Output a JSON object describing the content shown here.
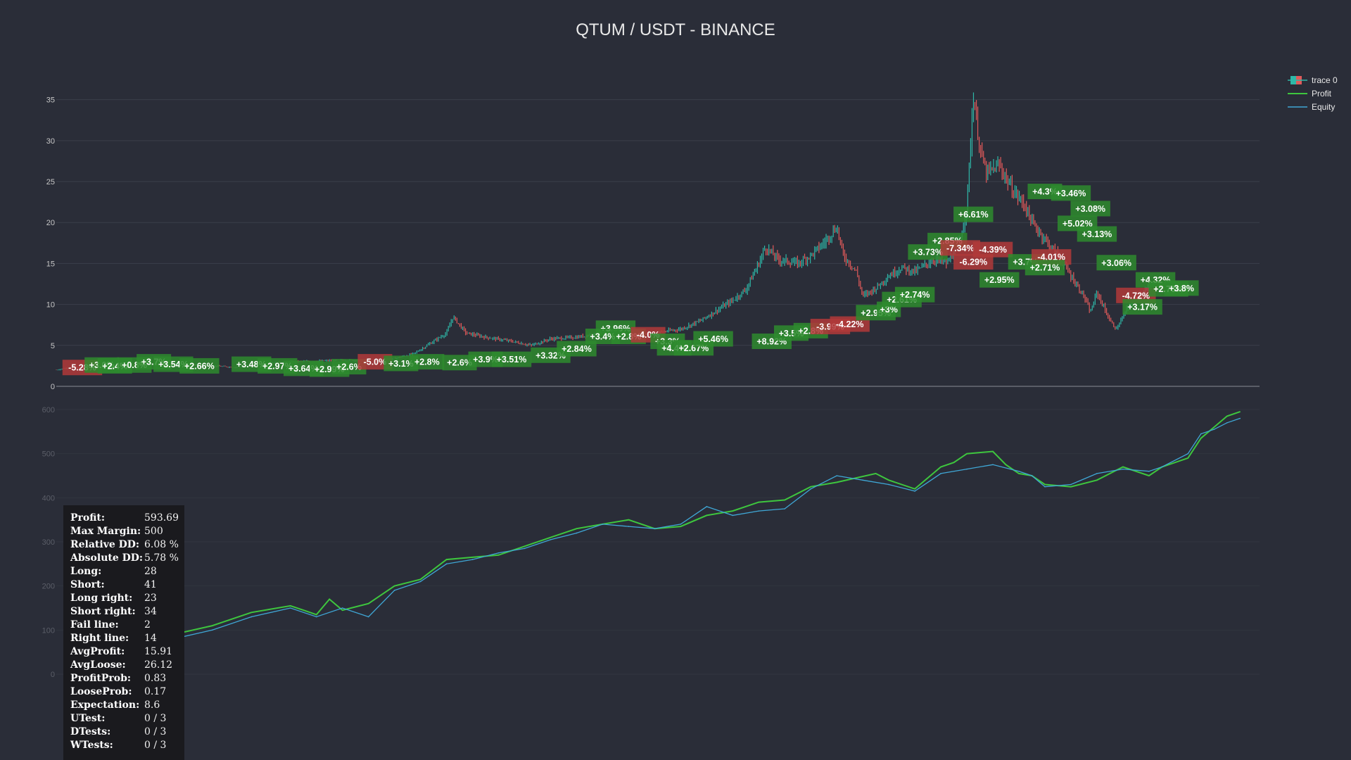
{
  "colors": {
    "background": "#2a2d38",
    "grid": "#3a3e4a",
    "candle_up": "#2eb8a8",
    "candle_down": "#e05a5a",
    "profit": "#3ec63e",
    "equity": "#3fa7d6",
    "win_box": "#2e8b2e",
    "loss_box": "#b23a3a"
  },
  "chart_data": [
    {
      "type": "candlestick",
      "title": "QTUM / USDT - BINANCE",
      "y_ticks": [
        "0",
        "5",
        "10",
        "15",
        "20",
        "25",
        "30",
        "35"
      ],
      "ylim": [
        0,
        36
      ],
      "legend": [
        "trace 0",
        "Profit",
        "Equity"
      ],
      "legend_position": "top-right",
      "price_path": [
        [
          0,
          2.0
        ],
        [
          2,
          2.3
        ],
        [
          5,
          2.3
        ],
        [
          8,
          2.5
        ],
        [
          12,
          2.6
        ],
        [
          16,
          2.6
        ],
        [
          20,
          2.7
        ],
        [
          24,
          2.5
        ],
        [
          28,
          2.3
        ],
        [
          32,
          2.8
        ],
        [
          36,
          3.0
        ],
        [
          40,
          3.1
        ],
        [
          44,
          3.2
        ],
        [
          48,
          3.2
        ],
        [
          52,
          3.4
        ],
        [
          55,
          4.0
        ],
        [
          58,
          5.5
        ],
        [
          60,
          6.5
        ],
        [
          61,
          8.5
        ],
        [
          63,
          6.5
        ],
        [
          66,
          6.0
        ],
        [
          70,
          5.5
        ],
        [
          73,
          5.0
        ],
        [
          76,
          5.8
        ],
        [
          80,
          6.0
        ],
        [
          84,
          6.5
        ],
        [
          88,
          6.2
        ],
        [
          92,
          6.5
        ],
        [
          96,
          7.0
        ],
        [
          99,
          8.0
        ],
        [
          102,
          9.5
        ],
        [
          104,
          10.5
        ],
        [
          106,
          11.8
        ],
        [
          108,
          15.0
        ],
        [
          109,
          17.0
        ],
        [
          111,
          15.5
        ],
        [
          114,
          15.0
        ],
        [
          116,
          16.0
        ],
        [
          118,
          17.5
        ],
        [
          120,
          19.5
        ],
        [
          121,
          16.0
        ],
        [
          123,
          14.0
        ],
        [
          124,
          11.0
        ],
        [
          126,
          12.0
        ],
        [
          128,
          13.5
        ],
        [
          130,
          14.5
        ],
        [
          132,
          14.0
        ],
        [
          135,
          15.5
        ],
        [
          137,
          15.0
        ],
        [
          139,
          18.0
        ],
        [
          140,
          22.0
        ],
        [
          141,
          35.5
        ],
        [
          142,
          29.0
        ],
        [
          143,
          26.0
        ],
        [
          145,
          27.0
        ],
        [
          147,
          24.0
        ],
        [
          149,
          22.0
        ],
        [
          150,
          20.0
        ],
        [
          152,
          18.0
        ],
        [
          154,
          16.0
        ],
        [
          156,
          13.5
        ],
        [
          158,
          11.0
        ],
        [
          159,
          9.0
        ],
        [
          160,
          11.5
        ],
        [
          162,
          8.0
        ],
        [
          163,
          7.0
        ],
        [
          165,
          10.0
        ],
        [
          167,
          11.5
        ],
        [
          169,
          12.5
        ],
        [
          171,
          12.0
        ],
        [
          173,
          12.3
        ]
      ],
      "trade_labels": [
        {
          "t": 4,
          "p": 2.3,
          "label": "-5.28%",
          "win": false
        },
        {
          "t": 7,
          "p": 2.6,
          "label": "+3.0%",
          "win": true
        },
        {
          "t": 9,
          "p": 2.5,
          "label": "+2.4%",
          "win": true
        },
        {
          "t": 12,
          "p": 2.6,
          "label": "+0.8%",
          "win": true
        },
        {
          "t": 15,
          "p": 3.0,
          "label": "+3.7%",
          "win": true
        },
        {
          "t": 18,
          "p": 2.7,
          "label": "+3.54%",
          "win": true
        },
        {
          "t": 22,
          "p": 2.5,
          "label": "+2.66%",
          "win": true
        },
        {
          "t": 30,
          "p": 2.7,
          "label": "+3.48%",
          "win": true
        },
        {
          "t": 34,
          "p": 2.5,
          "label": "+2.97%",
          "win": true
        },
        {
          "t": 38,
          "p": 2.2,
          "label": "+3.64%",
          "win": true
        },
        {
          "t": 42,
          "p": 2.1,
          "label": "+2.99%",
          "win": true
        },
        {
          "t": 45,
          "p": 2.4,
          "label": "+2.6%",
          "win": true
        },
        {
          "t": 49,
          "p": 3.0,
          "label": "-5.0%",
          "win": false
        },
        {
          "t": 53,
          "p": 2.8,
          "label": "+3.1%",
          "win": true
        },
        {
          "t": 57,
          "p": 3.0,
          "label": "+2.8%",
          "win": true
        },
        {
          "t": 62,
          "p": 2.9,
          "label": "+2.6%",
          "win": true
        },
        {
          "t": 66,
          "p": 3.3,
          "label": "+3.9%",
          "win": true
        },
        {
          "t": 70,
          "p": 3.3,
          "label": "+3.51%",
          "win": true
        },
        {
          "t": 76,
          "p": 3.8,
          "label": "+3.32%",
          "win": true
        },
        {
          "t": 80,
          "p": 4.6,
          "label": "+2.84%",
          "win": true
        },
        {
          "t": 86,
          "p": 7.1,
          "label": "+3.96%",
          "win": true
        },
        {
          "t": 84,
          "p": 6.1,
          "label": "+3.4%",
          "win": true
        },
        {
          "t": 88,
          "p": 6.1,
          "label": "+2.8%",
          "win": true
        },
        {
          "t": 91,
          "p": 6.3,
          "label": "-4.0%",
          "win": false
        },
        {
          "t": 94,
          "p": 5.5,
          "label": "+3.3%",
          "win": true
        },
        {
          "t": 95,
          "p": 4.7,
          "label": "+4.4%",
          "win": true
        },
        {
          "t": 98,
          "p": 4.7,
          "label": "+2.67%",
          "win": true
        },
        {
          "t": 101,
          "p": 5.8,
          "label": "+5.46%",
          "win": true
        },
        {
          "t": 110,
          "p": 5.5,
          "label": "+8.92%",
          "win": true
        },
        {
          "t": 113,
          "p": 6.5,
          "label": "+3.5%",
          "win": true
        },
        {
          "t": 116,
          "p": 6.8,
          "label": "+2.8%",
          "win": true
        },
        {
          "t": 119,
          "p": 7.3,
          "label": "-3.99%",
          "win": false
        },
        {
          "t": 122,
          "p": 7.6,
          "label": "-4.22%",
          "win": false
        },
        {
          "t": 126,
          "p": 9.0,
          "label": "+2.95%",
          "win": true
        },
        {
          "t": 128,
          "p": 9.4,
          "label": "+3%",
          "win": true
        },
        {
          "t": 130,
          "p": 10.6,
          "label": "+2.61%",
          "win": true
        },
        {
          "t": 132,
          "p": 11.2,
          "label": "+2.74%",
          "win": true
        },
        {
          "t": 134,
          "p": 16.4,
          "label": "+3.73%",
          "win": true
        },
        {
          "t": 137,
          "p": 17.8,
          "label": "+2.85%",
          "win": true
        },
        {
          "t": 139,
          "p": 16.9,
          "label": "-7.34%",
          "win": false
        },
        {
          "t": 141,
          "p": 15.2,
          "label": "-6.29%",
          "win": false
        },
        {
          "t": 141,
          "p": 21.0,
          "label": "+6.61%",
          "win": true
        },
        {
          "t": 144,
          "p": 16.7,
          "label": "-4.39%",
          "win": false
        },
        {
          "t": 145,
          "p": 13.0,
          "label": "+2.95%",
          "win": true
        },
        {
          "t": 149,
          "p": 15.2,
          "label": "+3.7%",
          "win": true
        },
        {
          "t": 153,
          "p": 15.8,
          "label": "-4.01%",
          "win": false
        },
        {
          "t": 152,
          "p": 14.5,
          "label": "+2.71%",
          "win": true
        },
        {
          "t": 152,
          "p": 23.8,
          "label": "+4.3%",
          "win": true
        },
        {
          "t": 156,
          "p": 23.6,
          "label": "+3.46%",
          "win": true
        },
        {
          "t": 159,
          "p": 21.7,
          "label": "+3.08%",
          "win": true
        },
        {
          "t": 157,
          "p": 19.9,
          "label": "+5.02%",
          "win": true
        },
        {
          "t": 160,
          "p": 18.6,
          "label": "+3.13%",
          "win": true
        },
        {
          "t": 163,
          "p": 15.1,
          "label": "+3.06%",
          "win": true
        },
        {
          "t": 166,
          "p": 11.1,
          "label": "-4.72%",
          "win": false
        },
        {
          "t": 167,
          "p": 9.7,
          "label": "+3.17%",
          "win": true
        },
        {
          "t": 169,
          "p": 13.0,
          "label": "+4.32%",
          "win": true
        },
        {
          "t": 171,
          "p": 11.9,
          "label": "+2.73%",
          "win": true
        },
        {
          "t": 173,
          "p": 12.0,
          "label": "+3.8%",
          "win": true
        }
      ]
    },
    {
      "type": "line",
      "y_ticks": [
        "0",
        "100",
        "200",
        "300",
        "400",
        "500",
        "600"
      ],
      "ylim": [
        0,
        600
      ],
      "series": [
        {
          "name": "Profit",
          "points": [
            [
              3,
              0
            ],
            [
              6,
              40
            ],
            [
              9,
              60
            ],
            [
              12,
              80
            ],
            [
              18,
              90
            ],
            [
              24,
              110
            ],
            [
              30,
              140
            ],
            [
              36,
              155
            ],
            [
              38,
              145
            ],
            [
              40,
              135
            ],
            [
              42,
              170
            ],
            [
              44,
              145
            ],
            [
              48,
              160
            ],
            [
              52,
              200
            ],
            [
              56,
              215
            ],
            [
              60,
              260
            ],
            [
              64,
              265
            ],
            [
              68,
              270
            ],
            [
              72,
              290
            ],
            [
              76,
              310
            ],
            [
              80,
              330
            ],
            [
              84,
              340
            ],
            [
              88,
              350
            ],
            [
              92,
              330
            ],
            [
              96,
              335
            ],
            [
              100,
              360
            ],
            [
              104,
              370
            ],
            [
              108,
              390
            ],
            [
              112,
              395
            ],
            [
              116,
              425
            ],
            [
              120,
              435
            ],
            [
              123,
              445
            ],
            [
              126,
              455
            ],
            [
              128,
              440
            ],
            [
              132,
              420
            ],
            [
              136,
              470
            ],
            [
              138,
              480
            ],
            [
              140,
              500
            ],
            [
              144,
              505
            ],
            [
              146,
              475
            ],
            [
              148,
              455
            ],
            [
              150,
              450
            ],
            [
              152,
              430
            ],
            [
              156,
              425
            ],
            [
              160,
              440
            ],
            [
              164,
              470
            ],
            [
              168,
              450
            ],
            [
              170,
              470
            ],
            [
              174,
              490
            ],
            [
              176,
              535
            ],
            [
              178,
              560
            ],
            [
              180,
              585
            ],
            [
              182,
              595
            ]
          ]
        },
        {
          "name": "Equity",
          "points": [
            [
              3,
              -5
            ],
            [
              6,
              25
            ],
            [
              9,
              60
            ],
            [
              12,
              70
            ],
            [
              18,
              80
            ],
            [
              24,
              100
            ],
            [
              30,
              130
            ],
            [
              36,
              150
            ],
            [
              40,
              130
            ],
            [
              44,
              150
            ],
            [
              48,
              130
            ],
            [
              52,
              190
            ],
            [
              56,
              210
            ],
            [
              60,
              250
            ],
            [
              64,
              260
            ],
            [
              68,
              275
            ],
            [
              72,
              285
            ],
            [
              76,
              305
            ],
            [
              80,
              320
            ],
            [
              84,
              340
            ],
            [
              88,
              335
            ],
            [
              92,
              330
            ],
            [
              96,
              340
            ],
            [
              100,
              380
            ],
            [
              104,
              360
            ],
            [
              108,
              370
            ],
            [
              112,
              375
            ],
            [
              116,
              420
            ],
            [
              120,
              450
            ],
            [
              124,
              440
            ],
            [
              128,
              430
            ],
            [
              132,
              415
            ],
            [
              136,
              455
            ],
            [
              140,
              465
            ],
            [
              144,
              475
            ],
            [
              148,
              460
            ],
            [
              150,
              450
            ],
            [
              152,
              425
            ],
            [
              156,
              430
            ],
            [
              160,
              455
            ],
            [
              164,
              465
            ],
            [
              168,
              460
            ],
            [
              170,
              470
            ],
            [
              174,
              500
            ],
            [
              176,
              545
            ],
            [
              178,
              555
            ],
            [
              180,
              570
            ],
            [
              182,
              580
            ]
          ]
        }
      ]
    }
  ],
  "stats": [
    {
      "key": "Profit:",
      "value": "593.69"
    },
    {
      "key": "Max Margin:",
      "value": "500"
    },
    {
      "key": "Relative DD:",
      "value": "6.08 %"
    },
    {
      "key": "Absolute DD:",
      "value": "5.78 %"
    },
    {
      "key": "Long:",
      "value": "28"
    },
    {
      "key": "Short:",
      "value": "41"
    },
    {
      "key": "Long right:",
      "value": "23"
    },
    {
      "key": "Short right:",
      "value": "34"
    },
    {
      "key": "Fail line:",
      "value": "2"
    },
    {
      "key": "Right line:",
      "value": "14"
    },
    {
      "key": "AvgProfit:",
      "value": "15.91"
    },
    {
      "key": "AvgLoose:",
      "value": "26.12"
    },
    {
      "key": "ProfitProb:",
      "value": "0.83"
    },
    {
      "key": "LooseProb:",
      "value": "0.17"
    },
    {
      "key": "Expectation:",
      "value": "8.6"
    },
    {
      "key": "UTest:",
      "value": "0 / 3"
    },
    {
      "key": "DTests:",
      "value": "0 / 3"
    },
    {
      "key": "WTests:",
      "value": "0 / 3"
    }
  ]
}
